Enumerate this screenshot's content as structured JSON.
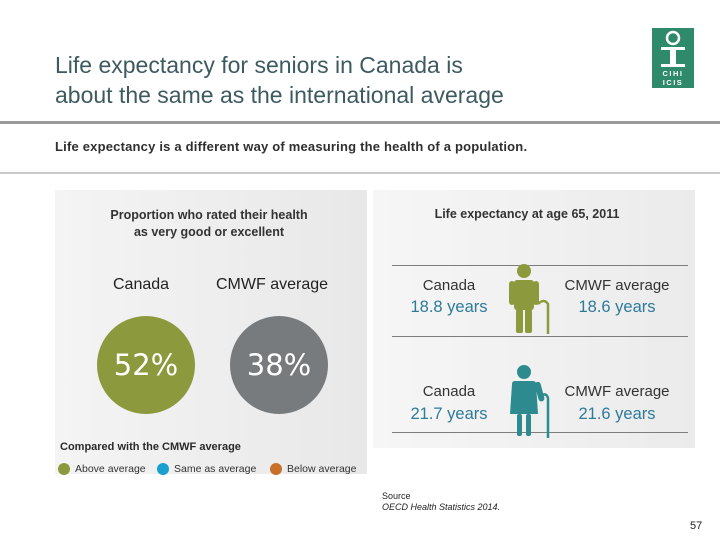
{
  "header": {
    "title_line1": "Life expectancy for seniors in Canada is",
    "title_line2": "about the same as the international average",
    "subtitle": "Life expectancy is a different way of measuring the health of a population."
  },
  "logo": {
    "top": "CIHI",
    "bottom": "ICIS",
    "color": "#2e8a6a"
  },
  "left_panel": {
    "heading_line1": "Proportion who rated their health",
    "heading_line2": "as very good or excellent",
    "canada_label": "Canada",
    "cmwf_label": "CMWF average",
    "canada_value": "52%",
    "cmwf_value": "38%",
    "canada_color": "#8c9a3d",
    "cmwf_color": "#777b7d"
  },
  "right_panel": {
    "heading": "Life expectancy at age 65, 2011",
    "men": {
      "icon": "elderly-man-icon",
      "canada_label": "Canada",
      "canada_value": "18.8 years",
      "cmwf_label": "CMWF average",
      "cmwf_value": "18.6 years",
      "icon_color": "#8c9a3d"
    },
    "women": {
      "icon": "elderly-woman-icon",
      "canada_label": "Canada",
      "canada_value": "21.7 years",
      "cmwf_label": "CMWF average",
      "cmwf_value": "21.6 years",
      "icon_color": "#2d8a8e"
    },
    "value_color": "#2d7a9a"
  },
  "legend": {
    "title": "Compared with the CMWF average",
    "items": [
      {
        "label": "Above average",
        "color": "#8c9a3d"
      },
      {
        "label": "Same as average",
        "color": "#1aa0d0"
      },
      {
        "label": "Below average",
        "color": "#c8702a"
      }
    ]
  },
  "source": {
    "label": "Source",
    "text": "OECD Health Statistics 2014."
  },
  "page_number": "57"
}
